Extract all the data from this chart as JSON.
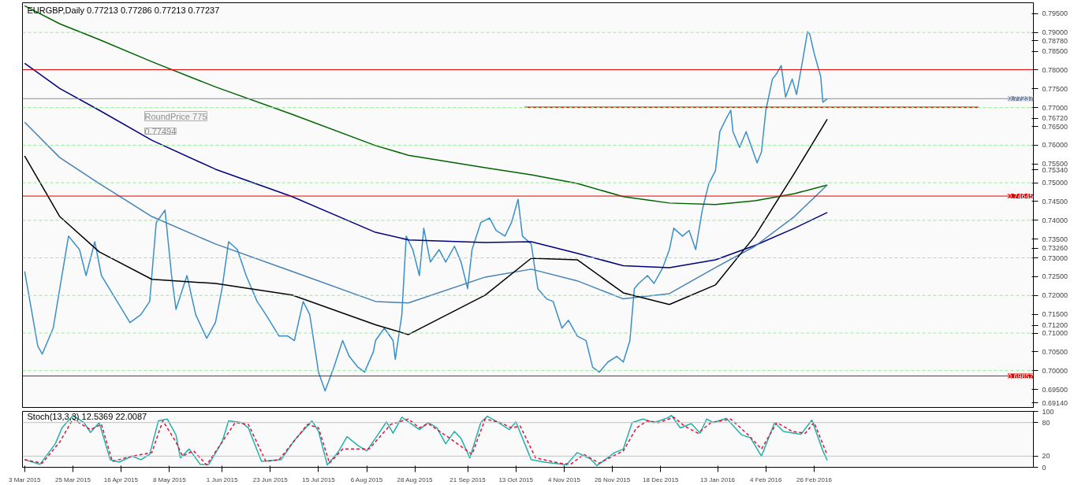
{
  "chart_data": [
    {
      "type": "line",
      "title": "EURGBP,Daily  0.77213 0.77286 0.77213 0.77237",
      "annotations": [
        "RoundPrice 775",
        "0.77494"
      ],
      "tick_labels": "y",
      "xlim": [
        "2015-03-02",
        "2016-06-05"
      ],
      "ylim": [
        0.6902,
        0.7979
      ],
      "yticks": [
        {
          "value": 0.795,
          "label": "0.79500"
        },
        {
          "value": 0.79,
          "label": "0.79000"
        },
        {
          "value": 0.7878,
          "label": "0.78780"
        },
        {
          "value": 0.785,
          "label": "0.78500"
        },
        {
          "value": 0.78,
          "label": "0.78000"
        },
        {
          "value": 0.775,
          "label": "0.77500"
        },
        {
          "value": 0.77,
          "label": "0.77000"
        },
        {
          "value": 0.7672,
          "label": "0.76720"
        },
        {
          "value": 0.765,
          "label": "0.76500"
        },
        {
          "value": 0.76,
          "label": "0.76000"
        },
        {
          "value": 0.755,
          "label": "0.75500"
        },
        {
          "value": 0.7534,
          "label": "0.75340"
        },
        {
          "value": 0.75,
          "label": "0.75000"
        },
        {
          "value": 0.745,
          "label": "0.74500"
        },
        {
          "value": 0.74,
          "label": "0.74000"
        },
        {
          "value": 0.735,
          "label": "0.73500"
        },
        {
          "value": 0.7326,
          "label": "0.73260"
        },
        {
          "value": 0.73,
          "label": "0.73000"
        },
        {
          "value": 0.725,
          "label": "0.72500"
        },
        {
          "value": 0.72,
          "label": "0.72000"
        },
        {
          "value": 0.715,
          "label": "0.71500"
        },
        {
          "value": 0.712,
          "label": "0.71200"
        },
        {
          "value": 0.71,
          "label": "0.71000"
        },
        {
          "value": 0.705,
          "label": "0.70500"
        },
        {
          "value": 0.7,
          "label": "0.70000"
        },
        {
          "value": 0.695,
          "label": "0.69500"
        },
        {
          "value": 0.6914,
          "label": "0.69140"
        }
      ],
      "ref_lines": [
        {
          "axis": "y",
          "value": 0.79,
          "color": "#90ee90",
          "line_style": "dashed"
        },
        {
          "axis": "y",
          "value": 0.77,
          "color": "#90ee90",
          "line_style": "dashed"
        },
        {
          "axis": "y",
          "value": 0.76,
          "color": "#90ee90",
          "line_style": "dashed"
        },
        {
          "axis": "y",
          "value": 0.75,
          "color": "#90ee90",
          "line_style": "dashed"
        },
        {
          "axis": "y",
          "value": 0.74,
          "color": "#90ee90",
          "line_style": "dashed"
        },
        {
          "axis": "y",
          "value": 0.73,
          "color": "#90ee90",
          "line_style": "dashed"
        },
        {
          "axis": "y",
          "value": 0.72,
          "color": "#90ee90",
          "line_style": "dashed"
        },
        {
          "axis": "y",
          "value": 0.71,
          "color": "#90ee90",
          "line_style": "dashed"
        },
        {
          "axis": "y",
          "value": 0.7,
          "color": "#90ee90",
          "line_style": "dashed"
        },
        {
          "axis": "y",
          "value": 0.7801,
          "color": "#e00000",
          "line_style": "solid"
        },
        {
          "axis": "y",
          "value": 0.74645,
          "label": "0.74645",
          "color": "#e00000",
          "line_style": "solid"
        },
        {
          "axis": "y",
          "value": 0.69857,
          "label": "0.69857",
          "color": "#e00000",
          "line_style": "solid"
        },
        {
          "axis": "y",
          "value": 0.77237,
          "label": "0.77237",
          "color": "#8090a8",
          "line_style": "solid"
        }
      ],
      "series": [
        {
          "color": "#3a8fc9",
          "x": [
            "2015-03-03",
            "2015-03-09",
            "2015-03-11",
            "2015-03-16",
            "2015-03-23",
            "2015-03-28",
            "2015-03-31",
            "2015-04-04",
            "2015-04-07",
            "2015-04-12",
            "2015-04-20",
            "2015-04-25",
            "2015-04-29",
            "2015-05-02",
            "2015-05-06",
            "2015-05-09",
            "2015-05-11",
            "2015-05-16",
            "2015-05-20",
            "2015-05-25",
            "2015-05-29",
            "2015-06-01",
            "2015-06-04",
            "2015-06-08",
            "2015-06-12",
            "2015-06-17",
            "2015-06-21",
            "2015-06-27",
            "2015-07-01",
            "2015-07-04",
            "2015-07-08",
            "2015-07-11",
            "2015-07-15",
            "2015-07-18",
            "2015-07-22",
            "2015-07-26",
            "2015-07-29",
            "2015-08-02",
            "2015-08-05",
            "2015-08-09",
            "2015-08-10",
            "2015-08-14",
            "2015-08-18",
            "2015-08-19",
            "2015-08-22",
            "2015-08-24",
            "2015-08-27",
            "2015-08-30",
            "2015-09-01",
            "2015-09-04",
            "2015-09-08",
            "2015-09-11",
            "2015-09-15",
            "2015-09-18",
            "2015-09-21",
            "2015-09-23",
            "2015-09-27",
            "2015-10-01",
            "2015-10-04",
            "2015-10-08",
            "2015-10-11",
            "2015-10-14",
            "2015-10-16",
            "2015-10-20",
            "2015-10-23",
            "2015-10-27",
            "2015-10-30",
            "2015-11-03",
            "2015-11-06",
            "2015-11-10",
            "2015-11-14",
            "2015-11-17",
            "2015-11-20",
            "2015-11-24",
            "2015-11-28",
            "2015-12-01",
            "2015-12-04",
            "2015-12-06",
            "2015-12-08",
            "2015-12-12",
            "2015-12-15",
            "2015-12-19",
            "2015-12-22",
            "2015-12-24",
            "2015-12-28",
            "2015-12-31",
            "2016-01-03",
            "2016-01-06",
            "2016-01-09",
            "2016-01-12",
            "2016-01-14",
            "2016-01-17",
            "2016-01-19",
            "2016-01-20",
            "2016-01-23",
            "2016-01-26",
            "2016-01-28",
            "2016-01-31",
            "2016-02-02",
            "2016-02-04",
            "2016-02-07",
            "2016-02-09",
            "2016-02-11",
            "2016-02-13",
            "2016-02-16",
            "2016-02-18",
            "2016-02-21",
            "2016-02-23",
            "2016-02-24",
            "2016-02-26",
            "2016-02-29",
            "2016-03-01",
            "2016-03-03"
          ],
          "values": [
            0.7264,
            0.7065,
            0.7044,
            0.7113,
            0.7358,
            0.7322,
            0.7253,
            0.7343,
            0.7253,
            0.7205,
            0.7128,
            0.7149,
            0.7184,
            0.7394,
            0.7427,
            0.7253,
            0.7163,
            0.7253,
            0.7149,
            0.7086,
            0.7128,
            0.7218,
            0.7343,
            0.7322,
            0.7253,
            0.7184,
            0.7149,
            0.7092,
            0.7092,
            0.708,
            0.7184,
            0.7149,
            0.6996,
            0.6946,
            0.7009,
            0.708,
            0.7038,
            0.7009,
            0.6996,
            0.705,
            0.708,
            0.7113,
            0.708,
            0.703,
            0.7149,
            0.7358,
            0.7322,
            0.7253,
            0.7379,
            0.7289,
            0.7322,
            0.7289,
            0.7331,
            0.7289,
            0.7218,
            0.7322,
            0.7394,
            0.7406,
            0.7373,
            0.7358,
            0.7394,
            0.7456,
            0.7358,
            0.7337,
            0.7218,
            0.7191,
            0.7184,
            0.7113,
            0.7134,
            0.7092,
            0.708,
            0.7009,
            0.6996,
            0.7023,
            0.7038,
            0.7023,
            0.708,
            0.7218,
            0.7232,
            0.7253,
            0.7232,
            0.7274,
            0.7322,
            0.7379,
            0.7358,
            0.7373,
            0.7322,
            0.7427,
            0.7498,
            0.7532,
            0.7636,
            0.7672,
            0.7693,
            0.7636,
            0.7594,
            0.7636,
            0.7603,
            0.7553,
            0.7582,
            0.7693,
            0.7776,
            0.7791,
            0.7812,
            0.7728,
            0.7776,
            0.7735,
            0.7833,
            0.7902,
            0.7896,
            0.7845,
            0.7783,
            0.7714,
            0.77237
          ]
        },
        {
          "color": "#006400",
          "x": [
            "2015-03-03",
            "2015-03-19",
            "2015-04-06",
            "2015-04-30",
            "2015-05-29",
            "2015-07-03",
            "2015-08-10",
            "2015-08-25",
            "2015-09-29",
            "2015-10-20",
            "2015-11-10",
            "2015-12-01",
            "2015-12-22",
            "2016-01-12",
            "2016-01-30",
            "2016-02-17",
            "2016-03-03"
          ],
          "values": [
            0.7971,
            0.7923,
            0.7881,
            0.7822,
            0.7755,
            0.7682,
            0.7599,
            0.7573,
            0.754,
            0.7521,
            0.7498,
            0.7463,
            0.7446,
            0.7442,
            0.7452,
            0.7471,
            0.7494
          ]
        },
        {
          "color": "#000080",
          "x": [
            "2015-03-03",
            "2015-03-19",
            "2015-04-06",
            "2015-04-30",
            "2015-05-29",
            "2015-07-03",
            "2015-08-10",
            "2015-08-25",
            "2015-09-29",
            "2015-10-20",
            "2015-11-10",
            "2015-12-01",
            "2015-12-22",
            "2016-01-12",
            "2016-01-30",
            "2016-02-17",
            "2016-03-03"
          ],
          "values": [
            0.7818,
            0.7751,
            0.7693,
            0.7613,
            0.7536,
            0.7463,
            0.7368,
            0.7348,
            0.7341,
            0.7343,
            0.7312,
            0.7279,
            0.7274,
            0.7295,
            0.7333,
            0.7379,
            0.7421
          ]
        },
        {
          "color": "#4682b4",
          "x": [
            "2015-03-03",
            "2015-03-19",
            "2015-04-06",
            "2015-04-30",
            "2015-05-29",
            "2015-07-03",
            "2015-08-10",
            "2015-08-25",
            "2015-09-29",
            "2015-10-20",
            "2015-11-10",
            "2015-12-01",
            "2015-12-22",
            "2016-01-12",
            "2016-01-30",
            "2016-02-17",
            "2016-03-03"
          ],
          "values": [
            0.7661,
            0.7567,
            0.7498,
            0.741,
            0.7337,
            0.7264,
            0.7184,
            0.718,
            0.7249,
            0.727,
            0.7239,
            0.7191,
            0.7205,
            0.7274,
            0.7331,
            0.741,
            0.7494
          ]
        },
        {
          "color": "#000000",
          "x": [
            "2015-03-03",
            "2015-03-19",
            "2015-04-06",
            "2015-04-30",
            "2015-05-29",
            "2015-07-03",
            "2015-08-10",
            "2015-08-25",
            "2015-09-29",
            "2015-10-20",
            "2015-11-10",
            "2015-12-01",
            "2015-12-22",
            "2016-01-12",
            "2016-01-30",
            "2016-02-17",
            "2016-03-03"
          ],
          "values": [
            0.7571,
            0.741,
            0.7316,
            0.7243,
            0.7232,
            0.7201,
            0.7122,
            0.7096,
            0.7201,
            0.7299,
            0.7295,
            0.7207,
            0.7176,
            0.7228,
            0.7358,
            0.7525,
            0.7669
          ]
        },
        {
          "color": "#e00000",
          "x": [
            "2015-10-17",
            "2016-05-11"
          ],
          "values": [
            0.7701,
            0.7701
          ]
        }
      ]
    },
    {
      "type": "line",
      "title": "Stoch(13,3,3) 12.5369 22.0087",
      "xlim": [
        "2015-03-02",
        "2016-06-05"
      ],
      "xticks": [
        {
          "value": "2015-03-03",
          "label": "3 Mar 2015"
        },
        {
          "value": "2015-03-25",
          "label": "25 Mar 2015"
        },
        {
          "value": "2015-04-16",
          "label": "16 Apr 2015"
        },
        {
          "value": "2015-05-08",
          "label": "8 May 2015"
        },
        {
          "value": "2015-06-01",
          "label": "1 Jun 2015"
        },
        {
          "value": "2015-06-23",
          "label": "23 Jun 2015"
        },
        {
          "value": "2015-07-15",
          "label": "15 Jul 2015"
        },
        {
          "value": "2015-08-06",
          "label": "6 Aug 2015"
        },
        {
          "value": "2015-08-28",
          "label": "28 Aug 2015"
        },
        {
          "value": "2015-09-21",
          "label": "21 Sep 2015"
        },
        {
          "value": "2015-10-13",
          "label": "13 Oct 2015"
        },
        {
          "value": "2015-11-04",
          "label": "4 Nov 2015"
        },
        {
          "value": "2015-11-26",
          "label": "26 Nov 2015"
        },
        {
          "value": "2015-12-18",
          "label": "18 Dec 2015"
        },
        {
          "value": "2016-01-13",
          "label": "13 Jan 2016"
        },
        {
          "value": "2016-02-04",
          "label": "4 Feb 2016"
        },
        {
          "value": "2016-02-26",
          "label": "26 Feb 2016"
        }
      ],
      "ylim": [
        0,
        100
      ],
      "yticks": [
        0,
        20,
        80,
        100
      ],
      "ref_lines": [
        {
          "axis": "y",
          "value": 20,
          "color": "#c0c0c0",
          "line_style": "solid"
        },
        {
          "axis": "y",
          "value": 80,
          "color": "#c0c0c0",
          "line_style": "solid"
        }
      ],
      "series": [
        {
          "color": "#20b2aa",
          "line_style": "solid",
          "x": [
            "2015-03-03",
            "2015-03-10",
            "2015-03-17",
            "2015-03-20",
            "2015-03-25",
            "2015-03-30",
            "2015-04-02",
            "2015-04-06",
            "2015-04-11",
            "2015-04-15",
            "2015-04-21",
            "2015-04-25",
            "2015-04-29",
            "2015-05-03",
            "2015-05-07",
            "2015-05-11",
            "2015-05-13",
            "2015-05-17",
            "2015-05-22",
            "2015-05-26",
            "2015-06-01",
            "2015-06-04",
            "2015-06-10",
            "2015-06-13",
            "2015-06-19",
            "2015-06-24",
            "2015-06-28",
            "2015-07-04",
            "2015-07-12",
            "2015-07-15",
            "2015-07-19",
            "2015-07-24",
            "2015-07-28",
            "2015-08-02",
            "2015-08-06",
            "2015-08-11",
            "2015-08-15",
            "2015-08-18",
            "2015-08-22",
            "2015-08-30",
            "2015-09-03",
            "2015-09-07",
            "2015-09-11",
            "2015-09-15",
            "2015-09-18",
            "2015-09-22",
            "2015-09-27",
            "2015-09-30",
            "2015-10-05",
            "2015-10-10",
            "2015-10-13",
            "2015-10-20",
            "2015-10-26",
            "2015-11-02",
            "2015-11-05",
            "2015-11-10",
            "2015-11-16",
            "2015-11-19",
            "2015-11-27",
            "2015-12-01",
            "2015-12-05",
            "2015-12-10",
            "2015-12-15",
            "2015-12-21",
            "2015-12-23",
            "2015-12-27",
            "2016-01-01",
            "2016-01-05",
            "2016-01-08",
            "2016-01-11",
            "2016-01-17",
            "2016-01-24",
            "2016-01-28",
            "2016-02-02",
            "2016-02-08",
            "2016-02-12",
            "2016-02-17",
            "2016-02-20",
            "2016-02-25",
            "2016-03-01",
            "2016-03-03"
          ],
          "values": [
            13.6,
            5.4,
            42.1,
            70.5,
            92.6,
            80,
            62.3,
            80,
            13.6,
            9.2,
            20,
            13.6,
            23.1,
            83.2,
            86.3,
            57.9,
            16.8,
            32.6,
            5.4,
            5.4,
            45.2,
            83.2,
            80,
            70.5,
            10.5,
            12.4,
            13.6,
            48.4,
            83.2,
            64.2,
            4.2,
            27.5,
            54.7,
            38.9,
            29.4,
            57.9,
            81.3,
            61,
            89.5,
            67.4,
            80,
            70.5,
            42.1,
            64.2,
            51.6,
            16.8,
            80,
            91.4,
            80,
            67.4,
            81.3,
            13.6,
            9.2,
            6.1,
            4.2,
            26.3,
            14.9,
            2.9,
            26.3,
            32.6,
            80,
            86.3,
            80,
            88.2,
            92.6,
            70.5,
            78.1,
            61,
            86.3,
            80,
            87.6,
            57.9,
            52.8,
            20,
            80,
            64.2,
            61,
            59.1,
            84.4,
            29.4,
            12.5369
          ]
        },
        {
          "color": "#dc143c",
          "line_style": "dashed",
          "x": [
            "2015-03-03",
            "2015-03-11",
            "2015-03-19",
            "2015-03-25",
            "2015-04-02",
            "2015-04-07",
            "2015-04-12",
            "2015-04-21",
            "2015-04-30",
            "2015-05-05",
            "2015-05-11",
            "2015-05-14",
            "2015-05-19",
            "2015-05-25",
            "2015-06-07",
            "2015-06-13",
            "2015-06-21",
            "2015-06-27",
            "2015-07-10",
            "2015-07-15",
            "2015-07-20",
            "2015-07-26",
            "2015-08-07",
            "2015-08-12",
            "2015-08-17",
            "2015-08-25",
            "2015-08-30",
            "2015-09-03",
            "2015-09-13",
            "2015-09-23",
            "2015-09-29",
            "2015-10-06",
            "2015-10-11",
            "2015-10-15",
            "2015-10-22",
            "2015-11-02",
            "2015-11-07",
            "2015-11-13",
            "2015-11-20",
            "2015-12-01",
            "2015-12-07",
            "2015-12-12",
            "2015-12-17",
            "2015-12-24",
            "2015-12-29",
            "2016-01-04",
            "2016-01-10",
            "2016-01-19",
            "2016-01-27",
            "2016-02-02",
            "2016-02-09",
            "2016-02-16",
            "2016-02-22",
            "2016-02-26",
            "2016-03-03"
          ],
          "values": [
            13.6,
            7.3,
            45.2,
            86.3,
            67.4,
            76.8,
            10.5,
            20,
            26.3,
            83.2,
            45.2,
            20,
            29.4,
            4.2,
            80,
            76.8,
            10.5,
            13.6,
            76.8,
            70.5,
            7.3,
            32.6,
            32.6,
            54.7,
            76.8,
            86.3,
            70.5,
            78.1,
            51.6,
            23.1,
            86.3,
            80,
            70.5,
            73.6,
            16.8,
            7.3,
            5.4,
            23.1,
            7.3,
            29.4,
            70.5,
            83.2,
            80,
            89.5,
            73.6,
            61,
            80,
            86.3,
            57.9,
            32.6,
            80,
            64.2,
            61,
            80,
            22.0087
          ]
        }
      ]
    }
  ]
}
